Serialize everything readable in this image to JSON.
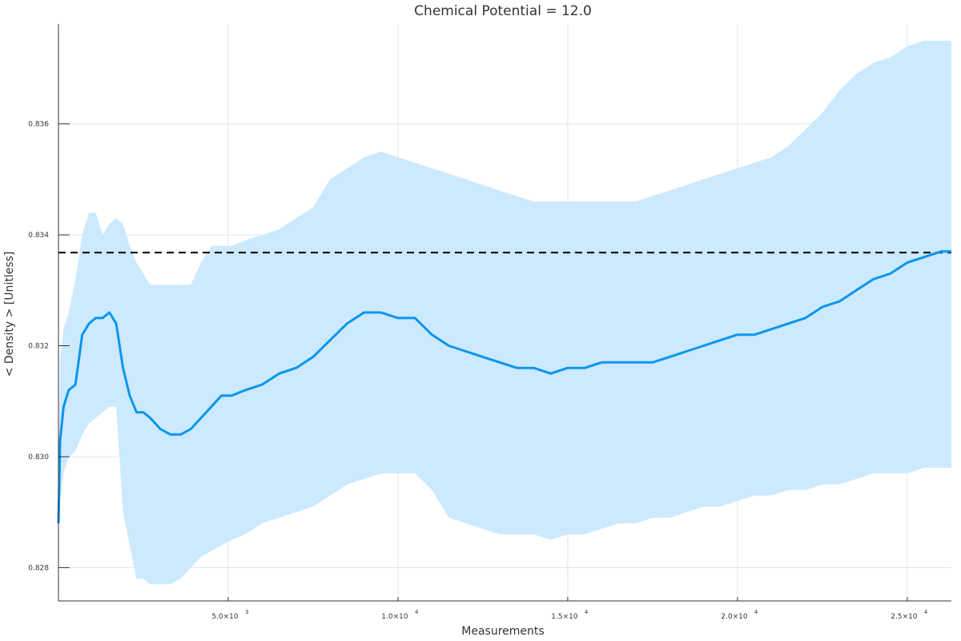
{
  "chart_data": {
    "type": "line",
    "title": "Chemical Potential = 12.0",
    "xlabel": "Measurements",
    "ylabel": "< Density > [Unitless]",
    "xlim": [
      0,
      26300
    ],
    "ylim": [
      0.8274,
      0.8378
    ],
    "grid": true,
    "x_ticks": [
      {
        "value": 5000,
        "mantissa": "5.0×10",
        "exp": "3"
      },
      {
        "value": 10000,
        "mantissa": "1.0×10",
        "exp": "4"
      },
      {
        "value": 15000,
        "mantissa": "1.5×10",
        "exp": "4"
      },
      {
        "value": 20000,
        "mantissa": "2.0×10",
        "exp": "4"
      },
      {
        "value": 25000,
        "mantissa": "2.5×10",
        "exp": "4"
      }
    ],
    "y_ticks": [
      {
        "value": 0.828,
        "label": "0.828"
      },
      {
        "value": 0.83,
        "label": "0.830"
      },
      {
        "value": 0.832,
        "label": "0.832"
      },
      {
        "value": 0.834,
        "label": "0.834"
      },
      {
        "value": 0.836,
        "label": "0.836"
      }
    ],
    "reference_line": {
      "y": 0.83368,
      "style": "dashed",
      "color": "#000000"
    },
    "colors": {
      "line": "#0a96ee",
      "band": "#cde9fd"
    },
    "x": [
      0,
      50,
      150,
      300,
      500,
      700,
      900,
      1100,
      1300,
      1500,
      1700,
      1900,
      2100,
      2300,
      2500,
      2700,
      3000,
      3300,
      3600,
      3900,
      4200,
      4500,
      4800,
      5100,
      5500,
      6000,
      6500,
      7000,
      7500,
      8000,
      8500,
      9000,
      9500,
      10000,
      10500,
      11000,
      11500,
      12000,
      12500,
      13000,
      13500,
      14000,
      14500,
      15000,
      15500,
      16000,
      16500,
      17000,
      17500,
      18000,
      18500,
      19000,
      19500,
      20000,
      20500,
      21000,
      21500,
      22000,
      22500,
      23000,
      23500,
      24000,
      24500,
      25000,
      25500,
      26000,
      26300
    ],
    "series": [
      {
        "values": [
          0.8288,
          0.8303,
          0.8309,
          0.8312,
          0.8313,
          0.8322,
          0.8324,
          0.8325,
          0.8325,
          0.8326,
          0.8324,
          0.8316,
          0.8311,
          0.8308,
          0.8308,
          0.8307,
          0.8305,
          0.8304,
          0.8304,
          0.8305,
          0.8307,
          0.8309,
          0.8311,
          0.8311,
          0.8312,
          0.8313,
          0.8315,
          0.8316,
          0.8318,
          0.8321,
          0.8324,
          0.8326,
          0.8326,
          0.8325,
          0.8325,
          0.8322,
          0.832,
          0.8319,
          0.8318,
          0.8317,
          0.8316,
          0.8316,
          0.8315,
          0.8316,
          0.8316,
          0.8317,
          0.8317,
          0.8317,
          0.8317,
          0.8318,
          0.8319,
          0.832,
          0.8321,
          0.8322,
          0.8322,
          0.8323,
          0.8324,
          0.8325,
          0.8327,
          0.8328,
          0.833,
          0.8332,
          0.8333,
          0.8335,
          0.8336,
          0.8337,
          0.8337
        ]
      },
      {
        "values": [
          0.8298,
          0.8318,
          0.8323,
          0.8326,
          0.8332,
          0.834,
          0.8344,
          0.8344,
          0.834,
          0.8342,
          0.8343,
          0.8342,
          0.8338,
          0.8335,
          0.8333,
          0.8331,
          0.8331,
          0.8331,
          0.8331,
          0.8331,
          0.8335,
          0.8338,
          0.8338,
          0.8338,
          0.8339,
          0.834,
          0.8341,
          0.8343,
          0.8345,
          0.835,
          0.8352,
          0.8354,
          0.8355,
          0.8354,
          0.8353,
          0.8352,
          0.8351,
          0.835,
          0.8349,
          0.8348,
          0.8347,
          0.8346,
          0.8346,
          0.8346,
          0.8346,
          0.8346,
          0.8346,
          0.8346,
          0.8347,
          0.8348,
          0.8349,
          0.835,
          0.8351,
          0.8352,
          0.8353,
          0.8354,
          0.8356,
          0.8359,
          0.8362,
          0.8366,
          0.8369,
          0.8371,
          0.8372,
          0.8374,
          0.8375,
          0.8375,
          0.8375
        ]
      },
      {
        "values": [
          0.8286,
          0.8292,
          0.8297,
          0.83,
          0.8301,
          0.8304,
          0.8306,
          0.8307,
          0.8308,
          0.8309,
          0.8309,
          0.829,
          0.8284,
          0.8278,
          0.8278,
          0.8277,
          0.8277,
          0.8277,
          0.8278,
          0.828,
          0.8282,
          0.8283,
          0.8284,
          0.8285,
          0.8286,
          0.8288,
          0.8289,
          0.829,
          0.8291,
          0.8293,
          0.8295,
          0.8296,
          0.8297,
          0.8297,
          0.8297,
          0.8294,
          0.8289,
          0.8288,
          0.8287,
          0.8286,
          0.8286,
          0.8286,
          0.8285,
          0.8286,
          0.8286,
          0.8287,
          0.8288,
          0.8288,
          0.8289,
          0.8289,
          0.829,
          0.8291,
          0.8291,
          0.8292,
          0.8293,
          0.8293,
          0.8294,
          0.8294,
          0.8295,
          0.8295,
          0.8296,
          0.8297,
          0.8297,
          0.8297,
          0.8298,
          0.8298,
          0.8298
        ]
      }
    ]
  }
}
